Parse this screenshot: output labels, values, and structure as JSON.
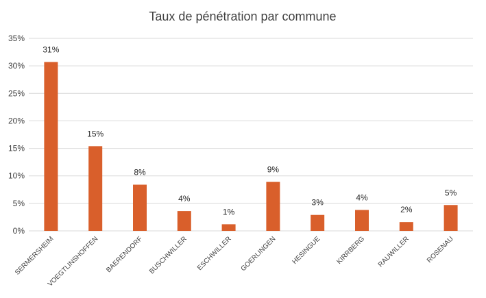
{
  "chart_data": {
    "type": "bar",
    "title": "Taux de pénétration par commune",
    "xlabel": "",
    "ylabel": "",
    "categories": [
      "SERMERSHEIM",
      "VOEGTLINSHOFFEN",
      "BAERENDORF",
      "BUSCHWILLER",
      "ESCHWILLER",
      "GOERLINGEN",
      "HESINGUE",
      "KIRRBERG",
      "RAUWILLER",
      "ROSENAU"
    ],
    "values": [
      30.7,
      15.4,
      8.4,
      3.6,
      1.2,
      8.9,
      2.9,
      3.8,
      1.6,
      4.7
    ],
    "data_labels": [
      "31%",
      "15%",
      "8%",
      "4%",
      "1%",
      "9%",
      "3%",
      "4%",
      "2%",
      "5%"
    ],
    "ylim": [
      0,
      35
    ],
    "y_ticks": [
      0,
      5,
      10,
      15,
      20,
      25,
      30,
      35
    ],
    "y_tick_labels": [
      "0%",
      "5%",
      "10%",
      "15%",
      "20%",
      "25%",
      "30%",
      "35%"
    ],
    "grid": true,
    "legend": "none",
    "bar_color": "#d95f2b"
  }
}
